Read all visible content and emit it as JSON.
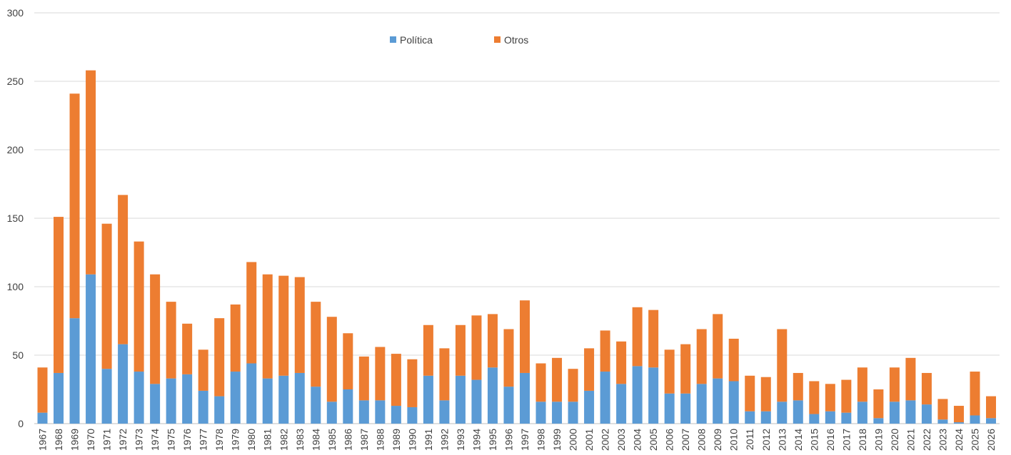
{
  "colors": {
    "politica": "#5b9bd5",
    "otros": "#ed7d31",
    "grid": "#d9d9d9",
    "text": "#404040"
  },
  "legend": {
    "politica_label": "Política",
    "otros_label": "Otros"
  },
  "chart_data": {
    "type": "bar",
    "stacked": true,
    "title": "",
    "xlabel": "",
    "ylabel": "",
    "ylim": [
      0,
      300
    ],
    "yticks": [
      0,
      50,
      100,
      150,
      200,
      250,
      300
    ],
    "grid": true,
    "legend_position": "top-center",
    "categories": [
      "1967",
      "1968",
      "1969",
      "1970",
      "1971",
      "1972",
      "1973",
      "1974",
      "1975",
      "1976",
      "1977",
      "1978",
      "1979",
      "1980",
      "1981",
      "1982",
      "1983",
      "1984",
      "1985",
      "1986",
      "1987",
      "1988",
      "1989",
      "1990",
      "1991",
      "1992",
      "1993",
      "1994",
      "1995",
      "1996",
      "1997",
      "1998",
      "1999",
      "2000",
      "2001",
      "2002",
      "2003",
      "2004",
      "2005",
      "2006",
      "2007",
      "2008",
      "2009",
      "2010",
      "2011",
      "2012",
      "2013",
      "2014",
      "2015",
      "2016",
      "2017",
      "2018",
      "2019",
      "2020",
      "2021",
      "2022",
      "2023",
      "2024",
      "2025",
      "2026"
    ],
    "series": [
      {
        "name": "Política",
        "color": "#5b9bd5",
        "values": [
          8,
          37,
          77,
          109,
          40,
          58,
          38,
          29,
          33,
          36,
          24,
          20,
          38,
          44,
          33,
          35,
          37,
          27,
          16,
          25,
          17,
          17,
          13,
          12,
          35,
          17,
          35,
          32,
          41,
          27,
          37,
          16,
          16,
          16,
          24,
          38,
          29,
          42,
          41,
          22,
          22,
          29,
          33,
          31,
          9,
          9,
          16,
          17,
          7,
          9,
          8,
          16,
          4,
          16,
          17,
          14,
          3,
          1,
          6,
          4
        ]
      },
      {
        "name": "Otros",
        "color": "#ed7d31",
        "values": [
          33,
          114,
          164,
          149,
          106,
          109,
          95,
          80,
          56,
          37,
          30,
          57,
          49,
          74,
          76,
          73,
          70,
          62,
          62,
          41,
          32,
          39,
          38,
          35,
          37,
          38,
          37,
          47,
          39,
          42,
          53,
          28,
          32,
          24,
          31,
          30,
          31,
          43,
          42,
          32,
          36,
          40,
          47,
          31,
          26,
          25,
          53,
          20,
          24,
          20,
          24,
          25,
          21,
          25,
          31,
          23,
          15,
          12,
          32,
          16
        ]
      }
    ]
  }
}
